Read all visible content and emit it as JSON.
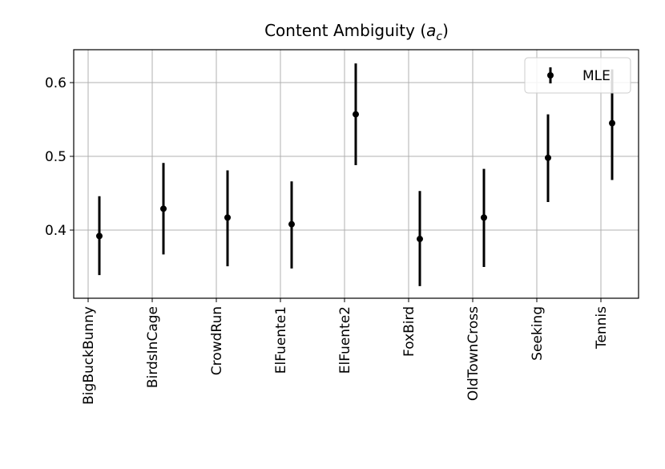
{
  "chart_data": {
    "type": "errorbar",
    "title": [
      "Content Ambiguity (",
      "a",
      "c",
      ")"
    ],
    "categories": [
      "BigBuckBunny",
      "BirdsInCage",
      "CrowdRun",
      "ElFuente1",
      "ElFuente2",
      "FoxBird",
      "OldTownCross",
      "Seeking",
      "Tennis"
    ],
    "series": [
      {
        "name": "MLE",
        "color": "#000000",
        "values": [
          0.392,
          0.429,
          0.417,
          0.408,
          0.557,
          0.388,
          0.417,
          0.498,
          0.545
        ],
        "lower": [
          0.339,
          0.367,
          0.351,
          0.348,
          0.488,
          0.324,
          0.35,
          0.438,
          0.468
        ],
        "upper": [
          0.446,
          0.491,
          0.481,
          0.466,
          0.626,
          0.453,
          0.483,
          0.557,
          0.618
        ]
      }
    ],
    "ylim": [
      0.3076,
      0.6446
    ],
    "yticks": [
      0.4,
      0.5,
      0.6
    ],
    "grid": true,
    "legend": "upper right"
  }
}
